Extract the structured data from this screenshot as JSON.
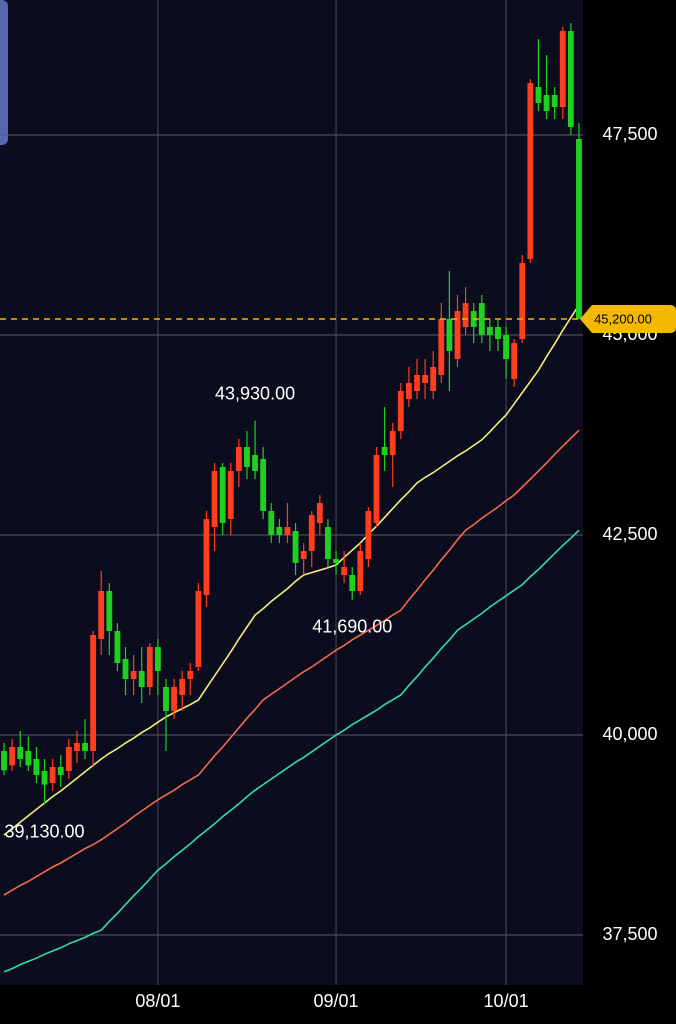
{
  "chart_data": {
    "type": "candlestick",
    "categories": [
      null,
      null,
      null,
      null,
      null,
      null,
      null,
      null,
      null,
      null,
      null,
      null,
      null,
      null,
      null,
      null,
      null,
      null,
      null,
      "08/01",
      null,
      null,
      null,
      null,
      null,
      null,
      null,
      null,
      null,
      null,
      null,
      null,
      null,
      null,
      null,
      null,
      null,
      null,
      null,
      null,
      null,
      "09/01",
      null,
      null,
      null,
      null,
      null,
      null,
      null,
      null,
      null,
      null,
      null,
      null,
      null,
      null,
      null,
      null,
      null,
      null,
      null,
      null,
      "10/01",
      null,
      null,
      null,
      null,
      null,
      null,
      null,
      null,
      null
    ],
    "open": [
      39800,
      39620,
      39850,
      39800,
      39700,
      39550,
      39400,
      39600,
      39550,
      39800,
      39900,
      39800,
      41200,
      41800,
      41300,
      40950,
      40700,
      40800,
      40600,
      41100,
      40600,
      40300,
      40500,
      40700,
      40850,
      41750,
      42600,
      43350,
      42700,
      43300,
      43600,
      43500,
      43450,
      42800,
      42600,
      42500,
      42550,
      42200,
      42300,
      42650,
      42600,
      42200,
      42000,
      42000,
      41800,
      42200,
      42650,
      43600,
      43500,
      43800,
      44200,
      44300,
      44400,
      44300,
      44500,
      45200,
      44700,
      45100,
      45300,
      45400,
      45100,
      45100,
      45000,
      44450,
      44950,
      45950,
      48100,
      48000,
      48000,
      47850,
      48800,
      47450
    ],
    "high": [
      39900,
      39950,
      40050,
      39980,
      39850,
      39700,
      39700,
      39750,
      39950,
      40050,
      40200,
      41300,
      42050,
      41900,
      41400,
      41100,
      41000,
      41100,
      41150,
      41200,
      40700,
      40700,
      40800,
      40900,
      41900,
      42800,
      43400,
      43400,
      43400,
      43700,
      43800,
      43930,
      43600,
      42900,
      42700,
      42900,
      42650,
      42400,
      42800,
      43000,
      42700,
      42300,
      42300,
      42100,
      42400,
      42850,
      43600,
      44100,
      43900,
      44400,
      44600,
      44700,
      44700,
      44800,
      45400,
      45800,
      45500,
      45600,
      45400,
      45500,
      45200,
      45200,
      45100,
      44950,
      46000,
      48200,
      48700,
      48500,
      48100,
      48850,
      48900,
      47650
    ],
    "low": [
      39500,
      39550,
      39600,
      39550,
      39400,
      39130,
      39300,
      39350,
      39450,
      39650,
      39700,
      39600,
      41000,
      41000,
      40800,
      40500,
      40500,
      40400,
      40500,
      40500,
      39800,
      40200,
      40300,
      40500,
      40800,
      41600,
      42300,
      42500,
      42500,
      43100,
      43200,
      43200,
      42700,
      42400,
      42400,
      42400,
      42000,
      42000,
      42100,
      42500,
      42100,
      42000,
      41900,
      41690,
      41750,
      42100,
      42600,
      43300,
      43100,
      43700,
      44100,
      44200,
      44200,
      44200,
      44400,
      44300,
      44600,
      45000,
      44900,
      44900,
      44800,
      44800,
      44450,
      44350,
      44900,
      45900,
      47800,
      47700,
      47700,
      47700,
      47500,
      45200
    ],
    "close": [
      39560,
      39850,
      39700,
      39620,
      39500,
      39380,
      39600,
      39500,
      39850,
      39900,
      39800,
      41250,
      41800,
      41300,
      40900,
      40700,
      40800,
      40600,
      41100,
      40800,
      40300,
      40600,
      40700,
      40800,
      41800,
      42700,
      43300,
      42650,
      43300,
      43600,
      43350,
      43300,
      42800,
      42500,
      42500,
      42600,
      42150,
      42300,
      42750,
      42900,
      42200,
      42150,
      42100,
      41800,
      42300,
      42800,
      43500,
      43500,
      43800,
      44300,
      44400,
      44500,
      44500,
      44600,
      45200,
      44800,
      45300,
      45400,
      45100,
      45000,
      45000,
      44950,
      44700,
      44900,
      45900,
      48150,
      47900,
      47800,
      47850,
      48800,
      47600,
      45200
    ],
    "up_color": "#ff3d1f",
    "down_color": "#1fd11f",
    "series": [
      {
        "color": "#f2ec7a",
        "values": [
          38750,
          38830,
          38910,
          38990,
          39070,
          39150,
          39230,
          39300,
          39380,
          39460,
          39540,
          39620,
          39700,
          39770,
          39830,
          39900,
          39960,
          40030,
          40090,
          40160,
          40225,
          40280,
          40330,
          40380,
          40437,
          40590,
          40740,
          40890,
          41040,
          41200,
          41350,
          41500,
          41580,
          41670,
          41750,
          41830,
          41920,
          42000,
          42030,
          42060,
          42090,
          42125,
          42220,
          42310,
          42400,
          42510,
          42610,
          42720,
          42830,
          42940,
          43040,
          43150,
          43220,
          43280,
          43350,
          43420,
          43490,
          43550,
          43620,
          43690,
          43790,
          43900,
          44000,
          44140,
          44280,
          44420,
          44560,
          44730,
          44890,
          45060,
          45220,
          45375
        ]
      },
      {
        "color": "#f26a4a",
        "values": [
          38000,
          38060,
          38120,
          38170,
          38230,
          38290,
          38350,
          38400,
          38460,
          38520,
          38580,
          38630,
          38690,
          38760,
          38830,
          38900,
          38980,
          39050,
          39120,
          39190,
          39250,
          39310,
          39380,
          39440,
          39500,
          39620,
          39740,
          39850,
          39970,
          40090,
          40210,
          40320,
          40440,
          40510,
          40580,
          40650,
          40720,
          40790,
          40850,
          40920,
          40990,
          41060,
          41120,
          41190,
          41250,
          41310,
          41370,
          41430,
          41500,
          41560,
          41690,
          41810,
          41940,
          42060,
          42190,
          42310,
          42440,
          42560,
          42630,
          42710,
          42780,
          42850,
          42930,
          43000,
          43100,
          43200,
          43300,
          43400,
          43510,
          43610,
          43710,
          43810
        ]
      },
      {
        "color": "#2fe0a0",
        "values": [
          37040,
          37080,
          37130,
          37170,
          37210,
          37260,
          37300,
          37340,
          37390,
          37430,
          37470,
          37520,
          37560,
          37670,
          37770,
          37880,
          37990,
          38090,
          38200,
          38310,
          38390,
          38480,
          38560,
          38640,
          38730,
          38810,
          38890,
          38980,
          39060,
          39140,
          39230,
          39310,
          39380,
          39450,
          39520,
          39590,
          39660,
          39720,
          39790,
          39860,
          39930,
          40000,
          40060,
          40130,
          40190,
          40250,
          40310,
          40380,
          40440,
          40500,
          40620,
          40730,
          40850,
          40960,
          41080,
          41190,
          41310,
          41380,
          41450,
          41520,
          41600,
          41670,
          41740,
          41810,
          41880,
          41980,
          42070,
          42170,
          42270,
          42370,
          42460,
          42560
        ]
      }
    ],
    "ylim": [
      36875,
      49187.5
    ],
    "yticks": [
      {
        "value": 37500,
        "label": "37,500"
      },
      {
        "value": 40000,
        "label": "40,000"
      },
      {
        "value": 42500,
        "label": "42,500"
      },
      {
        "value": 45000,
        "label": "45,000"
      },
      {
        "value": 47500,
        "label": "47,500"
      }
    ],
    "grid": true,
    "current_price": {
      "value": 45200,
      "label": "45,200.00",
      "color": "#f5b800"
    },
    "annotations": [
      {
        "value": 43930,
        "label": "43,930.00"
      },
      {
        "value": 41690,
        "label": "41,690.00"
      },
      {
        "value": 39130,
        "label": "39,130.00"
      }
    ]
  }
}
